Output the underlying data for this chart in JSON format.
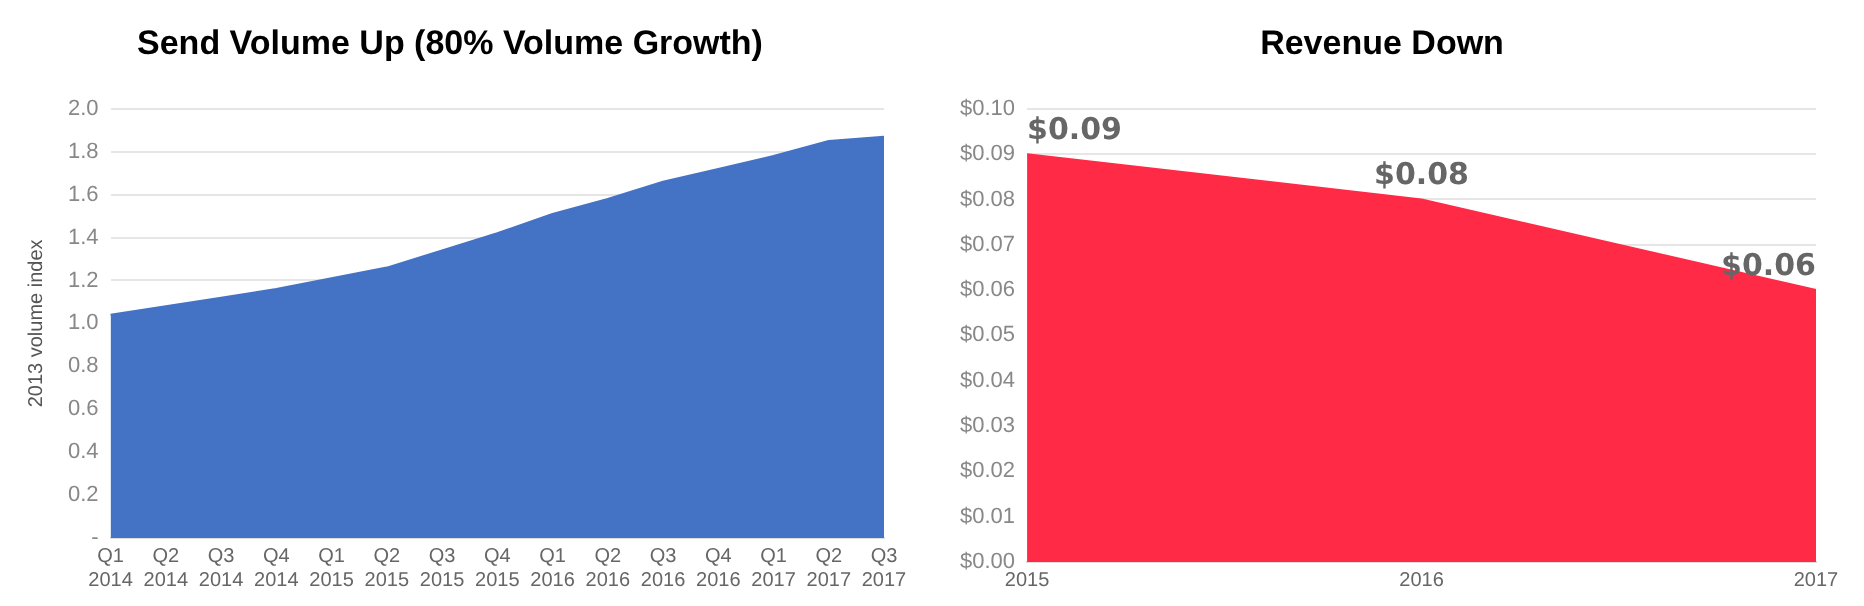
{
  "chart_data": [
    {
      "type": "area",
      "title": "Send Volume Up (80% Volume Growth)",
      "ylabel": "2013 volume index",
      "categories": [
        "Q1 2014",
        "Q2 2014",
        "Q3 2014",
        "Q4 2014",
        "Q1 2015",
        "Q2 2015",
        "Q3 2015",
        "Q4 2015",
        "Q1 2016",
        "Q2 2016",
        "Q3 2016",
        "Q4 2016",
        "Q1 2017",
        "Q2 2017",
        "Q3 2017"
      ],
      "values": [
        1.04,
        1.08,
        1.12,
        1.16,
        1.21,
        1.26,
        1.34,
        1.42,
        1.51,
        1.58,
        1.66,
        1.72,
        1.78,
        1.85,
        1.87
      ],
      "color": "#4472c4",
      "ylim": [
        0,
        2
      ],
      "yticks": [
        {
          "value": 0,
          "label": "-"
        },
        {
          "value": 0.2,
          "label": "0.2"
        },
        {
          "value": 0.4,
          "label": "0.4"
        },
        {
          "value": 0.6,
          "label": "0.6"
        },
        {
          "value": 0.8,
          "label": "0.8"
        },
        {
          "value": 1,
          "label": "1.0"
        },
        {
          "value": 1.2,
          "label": "1.2"
        },
        {
          "value": 1.4,
          "label": "1.4"
        },
        {
          "value": 1.6,
          "label": "1.6"
        },
        {
          "value": 1.8,
          "label": "1.8"
        },
        {
          "value": 2,
          "label": "2.0"
        }
      ],
      "grid": "y",
      "legend": false
    },
    {
      "type": "area",
      "title": "Revenue Down",
      "categories": [
        "2015",
        "2016",
        "2017"
      ],
      "values": [
        0.09,
        0.08,
        0.06
      ],
      "value_labels": [
        "$0.09",
        "$0.08",
        "$0.06"
      ],
      "color": "#ff2a46",
      "ylim": [
        0,
        0.1
      ],
      "yticks": [
        {
          "value": 0,
          "label": "$0.00"
        },
        {
          "value": 0.01,
          "label": "$0.01"
        },
        {
          "value": 0.02,
          "label": "$0.02"
        },
        {
          "value": 0.03,
          "label": "$0.03"
        },
        {
          "value": 0.04,
          "label": "$0.04"
        },
        {
          "value": 0.05,
          "label": "$0.05"
        },
        {
          "value": 0.06,
          "label": "$0.06"
        },
        {
          "value": 0.07,
          "label": "$0.07"
        },
        {
          "value": 0.08,
          "label": "$0.08"
        },
        {
          "value": 0.09,
          "label": "$0.09"
        },
        {
          "value": 0.1,
          "label": "$0.10"
        }
      ],
      "grid": "y",
      "legend": false
    }
  ]
}
